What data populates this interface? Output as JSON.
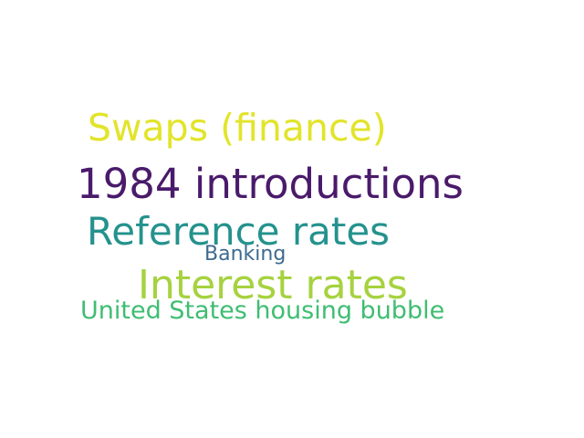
{
  "words": [
    {
      "text": "Swaps (finance)",
      "color": "#e2e42a"
    },
    {
      "text": "1984 introductions",
      "color": "#4a1a6b"
    },
    {
      "text": "Reference rates",
      "color": "#24928d"
    },
    {
      "text": "Banking",
      "color": "#3d6a8f"
    },
    {
      "text": "Interest rates",
      "color": "#a6d23f"
    },
    {
      "text": "United States housing bubble",
      "color": "#3fbd72"
    }
  ]
}
